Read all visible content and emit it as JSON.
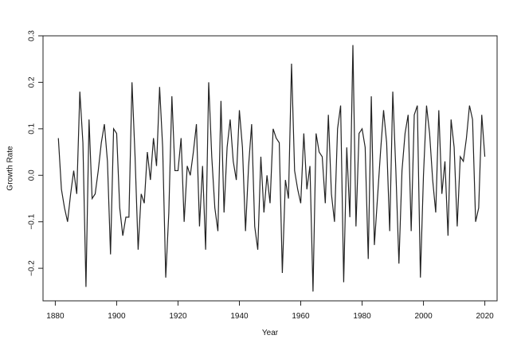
{
  "chart_data": {
    "type": "line",
    "title": "",
    "xlabel": "Year",
    "ylabel": "Growth Rate",
    "xlim": [
      1876,
      2024
    ],
    "ylim": [
      -0.27,
      0.3
    ],
    "x_ticks": [
      1880,
      1900,
      1920,
      1940,
      1960,
      1980,
      2000,
      2020
    ],
    "y_ticks": [
      -0.2,
      -0.1,
      0.0,
      0.1,
      0.2,
      0.3
    ],
    "x_tick_labels": [
      "1880",
      "1900",
      "1920",
      "1940",
      "1960",
      "1980",
      "2000",
      "2020"
    ],
    "y_tick_labels": [
      "−0.2",
      "−0.1",
      "0.0",
      "0.1",
      "0.2",
      "0.3"
    ],
    "grid": false,
    "legend": "none",
    "line_color": "#222222",
    "series": [
      {
        "x": [
          1881,
          1882,
          1883,
          1884,
          1885,
          1886,
          1887,
          1888,
          1889,
          1890,
          1891,
          1892,
          1893,
          1894,
          1895,
          1896,
          1897,
          1898,
          1899,
          1900,
          1901,
          1902,
          1903,
          1904,
          1905,
          1906,
          1907,
          1908,
          1909,
          1910,
          1911,
          1912,
          1913,
          1914,
          1915,
          1916,
          1917,
          1918,
          1919,
          1920,
          1921,
          1922,
          1923,
          1924,
          1925,
          1926,
          1927,
          1928,
          1929,
          1930,
          1931,
          1932,
          1933,
          1934,
          1935,
          1936,
          1937,
          1938,
          1939,
          1940,
          1941,
          1942,
          1943,
          1944,
          1945,
          1946,
          1947,
          1948,
          1949,
          1950,
          1951,
          1952,
          1953,
          1954,
          1955,
          1956,
          1957,
          1958,
          1959,
          1960,
          1961,
          1962,
          1963,
          1964,
          1965,
          1966,
          1967,
          1968,
          1969,
          1970,
          1971,
          1972,
          1973,
          1974,
          1975,
          1976,
          1977,
          1978,
          1979,
          1980,
          1981,
          1982,
          1983,
          1984,
          1985,
          1986,
          1987,
          1988,
          1989,
          1990,
          1991,
          1992,
          1993,
          1994,
          1995,
          1996,
          1997,
          1998,
          1999,
          2000,
          2001,
          2002,
          2003,
          2004,
          2005,
          2006,
          2007,
          2008,
          2009,
          2010,
          2011,
          2012,
          2013,
          2014,
          2015,
          2016,
          2017,
          2018,
          2019,
          2020
        ],
        "values": [
          0.08,
          -0.03,
          -0.07,
          -0.1,
          -0.04,
          0.01,
          -0.04,
          0.18,
          0.07,
          -0.24,
          0.12,
          -0.05,
          -0.04,
          0.01,
          0.07,
          0.11,
          0.03,
          -0.17,
          0.1,
          0.09,
          -0.07,
          -0.13,
          -0.09,
          -0.09,
          0.2,
          0.04,
          -0.16,
          -0.04,
          -0.06,
          0.05,
          -0.01,
          0.08,
          0.02,
          0.19,
          0.06,
          -0.22,
          -0.08,
          0.17,
          0.01,
          0.01,
          0.08,
          -0.1,
          0.02,
          0.0,
          0.05,
          0.11,
          -0.11,
          0.02,
          -0.16,
          0.2,
          0.04,
          -0.07,
          -0.12,
          0.16,
          -0.08,
          0.06,
          0.12,
          0.03,
          -0.01,
          0.14,
          0.06,
          -0.12,
          0.02,
          0.11,
          -0.11,
          -0.16,
          0.04,
          -0.08,
          0.0,
          -0.06,
          0.1,
          0.08,
          0.07,
          -0.21,
          -0.01,
          -0.05,
          0.24,
          0.01,
          -0.03,
          -0.06,
          0.09,
          -0.03,
          0.02,
          -0.25,
          0.09,
          0.05,
          0.04,
          -0.06,
          0.13,
          -0.04,
          -0.1,
          0.1,
          0.15,
          -0.23,
          0.06,
          -0.09,
          0.28,
          -0.11,
          0.09,
          0.1,
          0.06,
          -0.18,
          0.17,
          -0.15,
          -0.05,
          0.05,
          0.14,
          0.07,
          -0.12,
          0.18,
          0.01,
          -0.19,
          0.01,
          0.09,
          0.13,
          -0.12,
          0.13,
          0.15,
          -0.22,
          0.0,
          0.15,
          0.09,
          -0.01,
          -0.08,
          0.14,
          -0.04,
          0.03,
          -0.13,
          0.12,
          0.06,
          -0.11,
          0.04,
          0.03,
          0.08,
          0.15,
          0.12,
          -0.1,
          -0.07,
          0.13,
          0.04
        ]
      }
    ]
  }
}
